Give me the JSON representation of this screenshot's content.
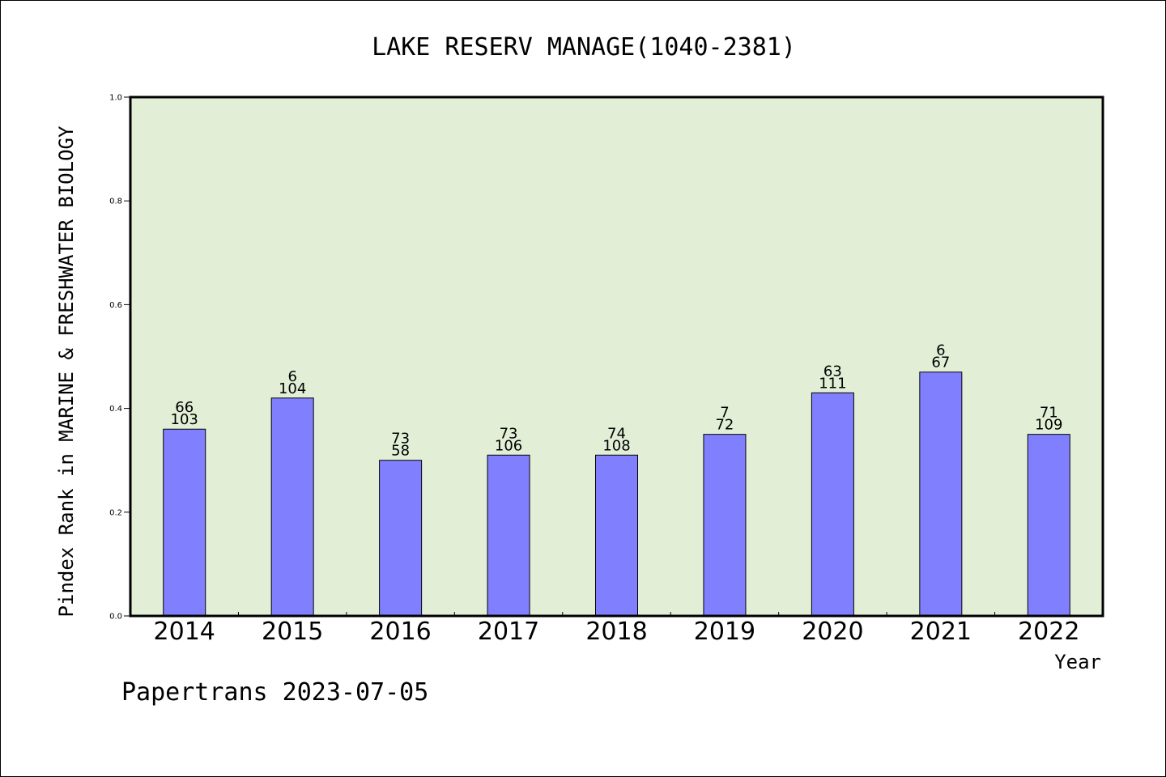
{
  "chart_data": {
    "type": "bar",
    "title": "LAKE RESERV MANAGE(1040-2381)",
    "xlabel": "Year",
    "ylabel": "Pindex Rank in MARINE & FRESHWATER BIOLOGY",
    "categories": [
      "2014",
      "2015",
      "2016",
      "2017",
      "2018",
      "2019",
      "2020",
      "2021",
      "2022"
    ],
    "values": [
      0.36,
      0.42,
      0.3,
      0.31,
      0.31,
      0.35,
      0.43,
      0.47,
      0.35
    ],
    "labels_top": [
      "66",
      "6",
      "73",
      "73",
      "74",
      "7",
      "63",
      "6",
      "71"
    ],
    "labels_bottom": [
      "103",
      "104",
      "58",
      "106",
      "108",
      "72",
      "111",
      "67",
      "109"
    ],
    "ylim": [
      0,
      1.0
    ],
    "yticks": [
      "0.0",
      "0.2",
      "0.4",
      "0.6",
      "0.8",
      "1.0"
    ],
    "grid": false,
    "colors": {
      "bar": "#8080ff",
      "plot_background": "#e2efd6"
    }
  },
  "footer": "Papertrans 2023-07-05"
}
